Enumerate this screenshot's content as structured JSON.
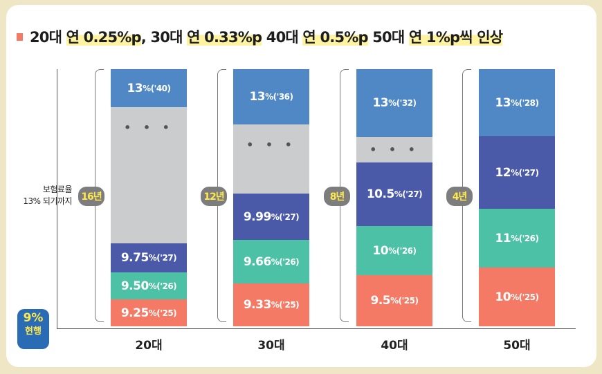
{
  "title": {
    "parts": [
      "20대 ",
      "연 0.25%p",
      ", 30대 ",
      "연 0.33%p",
      " 40대 ",
      "연 0.5%p",
      " 50대 ",
      "연 1%p",
      "씩 인상"
    ]
  },
  "y_label": [
    "보험료율",
    "13% 되기까지"
  ],
  "current": {
    "value": "9%",
    "label": "현행"
  },
  "colors": {
    "13pct": "#5088c5",
    "y27": "#4a5aa8",
    "y26": "#4dc1a5",
    "y25": "#f47a65",
    "gap": "#cbcccd",
    "badge": "#7d7d7d",
    "current": "#2a6bb6"
  },
  "chart_data": {
    "type": "bar",
    "categories": [
      "20대",
      "30대",
      "40대",
      "50대"
    ],
    "durations": [
      "16년",
      "12년",
      "8년",
      "4년"
    ],
    "bars": [
      {
        "category": "20대",
        "segments": [
          {
            "rate": "9.25%",
            "year": "('25)"
          },
          {
            "rate": "9.50%",
            "year": "('26)"
          },
          {
            "rate": "9.75%",
            "year": "('27)"
          },
          {
            "gap": "• • •"
          },
          {
            "rate": "13%",
            "year": "('40)"
          }
        ]
      },
      {
        "category": "30대",
        "segments": [
          {
            "rate": "9.33%",
            "year": "('25)"
          },
          {
            "rate": "9.66%",
            "year": "('26)"
          },
          {
            "rate": "9.99%",
            "year": "('27)"
          },
          {
            "gap": "• • •"
          },
          {
            "rate": "13%",
            "year": "('36)"
          }
        ]
      },
      {
        "category": "40대",
        "segments": [
          {
            "rate": "9.5%",
            "year": "('25)"
          },
          {
            "rate": "10%",
            "year": "('26)"
          },
          {
            "rate": "10.5%",
            "year": "('27)"
          },
          {
            "gap": "• • •"
          },
          {
            "rate": "13%",
            "year": "('32)"
          }
        ]
      },
      {
        "category": "50대",
        "segments": [
          {
            "rate": "10%",
            "year": "('25)"
          },
          {
            "rate": "11%",
            "year": "('26)"
          },
          {
            "rate": "12%",
            "year": "('27)"
          },
          {
            "rate": "13%",
            "year": "('28)"
          }
        ]
      }
    ]
  }
}
